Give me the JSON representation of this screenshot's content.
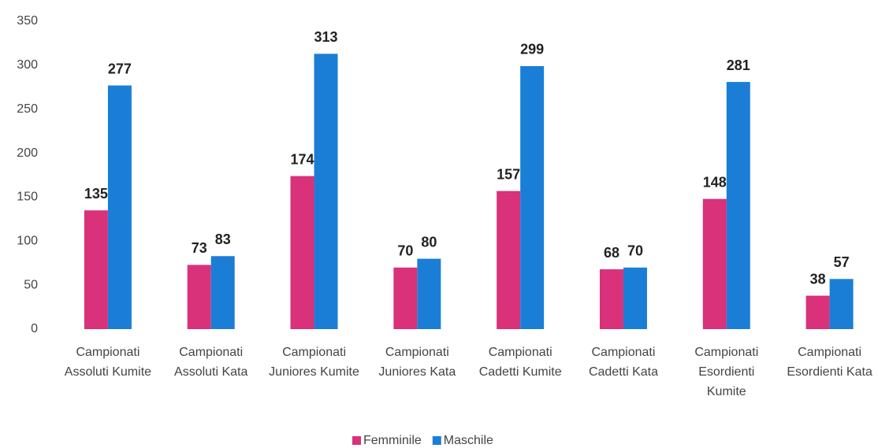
{
  "chart_data": {
    "type": "bar",
    "categories": [
      "Campionati Assoluti Kumite",
      "Campionati Assoluti Kata",
      "Campionati Juniores Kumite",
      "Campionati Juniores Kata",
      "Campionati Cadetti Kumite",
      "Campionati Cadetti Kata",
      "Campionati Esordienti Kumite",
      "Campionati Esordienti Kata"
    ],
    "series": [
      {
        "name": "Femminile",
        "color": "#d9317a",
        "values": [
          135,
          73,
          174,
          70,
          157,
          68,
          148,
          38
        ]
      },
      {
        "name": "Maschile",
        "color": "#1b7ed6",
        "values": [
          277,
          83,
          313,
          80,
          299,
          70,
          281,
          57
        ]
      }
    ],
    "ylim": [
      0,
      350
    ],
    "yticks": [
      0,
      50,
      100,
      150,
      200,
      250,
      300,
      350
    ],
    "grid": false,
    "legend": "bottom"
  }
}
